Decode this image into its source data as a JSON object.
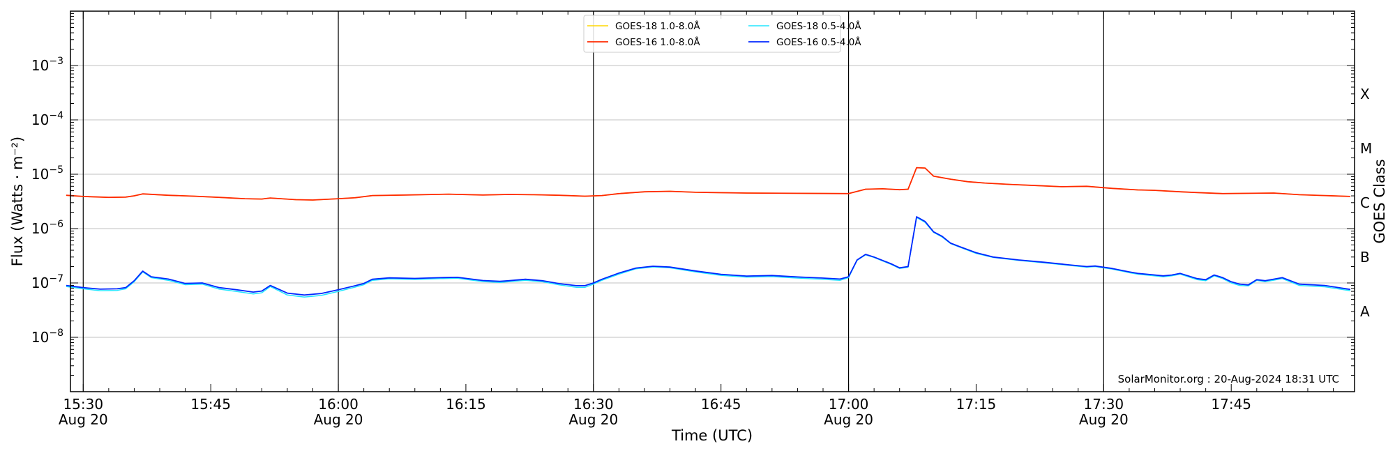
{
  "chart_data": {
    "type": "line",
    "xlabel": "Time (UTC)",
    "ylabel": "Flux (Watts · m⁻²)",
    "y2label": "GOES Class",
    "yscale": "log",
    "xlim": [
      "2024-08-20 15:28:30",
      "2024-08-20 17:59:30"
    ],
    "ylim": [
      1e-09,
      0.01
    ],
    "grid": "horizontal at each decade",
    "legend": {
      "placement": "top-center",
      "columns": 2
    },
    "credit": "SolarMonitor.org : 20-Aug-2024 18:31 UTC",
    "x_ticks": [
      {
        "time": "15:30",
        "date": "Aug 20"
      },
      {
        "time": "15:45",
        "date": ""
      },
      {
        "time": "16:00",
        "date": "Aug 20"
      },
      {
        "time": "16:15",
        "date": ""
      },
      {
        "time": "16:30",
        "date": "Aug 20"
      },
      {
        "time": "16:45",
        "date": ""
      },
      {
        "time": "17:00",
        "date": "Aug 20"
      },
      {
        "time": "17:15",
        "date": ""
      },
      {
        "time": "17:30",
        "date": "Aug 20"
      },
      {
        "time": "17:45",
        "date": ""
      }
    ],
    "major_vlines": [
      "15:30",
      "16:00",
      "16:30",
      "17:00",
      "17:30"
    ],
    "y_ticks": [
      {
        "value": 1e-08,
        "base": "10",
        "exp": "−8"
      },
      {
        "value": 1e-07,
        "base": "10",
        "exp": "−7"
      },
      {
        "value": 1e-06,
        "base": "10",
        "exp": "−6"
      },
      {
        "value": 1e-05,
        "base": "10",
        "exp": "−5"
      },
      {
        "value": 0.0001,
        "base": "10",
        "exp": "−4"
      },
      {
        "value": 0.001,
        "base": "10",
        "exp": "−3"
      }
    ],
    "goes_classes": [
      {
        "label": "A",
        "value": 3e-08
      },
      {
        "label": "B",
        "value": 3e-07
      },
      {
        "label": "C",
        "value": 3e-06
      },
      {
        "label": "M",
        "value": 3e-05
      },
      {
        "label": "X",
        "value": 0.0003
      }
    ],
    "series": [
      {
        "name": "GOES-18 1.0-8.0Å",
        "color": "#ffd700",
        "width": 1.5,
        "x": [
          "15:28",
          "15:30",
          "15:33",
          "15:35",
          "15:36",
          "15:37",
          "15:40",
          "15:43",
          "15:46",
          "15:49",
          "15:51",
          "15:52",
          "15:55",
          "15:57",
          "16:00",
          "16:02",
          "16:04",
          "16:08",
          "16:13",
          "16:17",
          "16:20",
          "16:23",
          "16:26",
          "16:29",
          "16:31",
          "16:33",
          "16:36",
          "16:39",
          "16:42",
          "16:48",
          "16:54",
          "17:00",
          "17:02",
          "17:04",
          "17:06",
          "17:07",
          "17:08",
          "17:09",
          "17:10",
          "17:12",
          "17:14",
          "17:16",
          "17:19",
          "17:22",
          "17:25",
          "17:28",
          "17:31",
          "17:34",
          "17:36",
          "17:39",
          "17:41",
          "17:44",
          "17:47",
          "17:50",
          "17:53",
          "17:56",
          "17:59"
        ],
        "y": [
          4.1e-06,
          3.9e-06,
          3.75e-06,
          3.8e-06,
          4e-06,
          4.35e-06,
          4.1e-06,
          3.95e-06,
          3.75e-06,
          3.55e-06,
          3.5e-06,
          3.65e-06,
          3.4e-06,
          3.35e-06,
          3.55e-06,
          3.7e-06,
          4.05e-06,
          4.15e-06,
          4.3e-06,
          4.15e-06,
          4.25e-06,
          4.2e-06,
          4.1e-06,
          3.95e-06,
          4.05e-06,
          4.4e-06,
          4.75e-06,
          4.85e-06,
          4.65e-06,
          4.5e-06,
          4.45e-06,
          4.4e-06,
          5.3e-06,
          5.4e-06,
          5.2e-06,
          5.3e-06,
          1.32e-05,
          1.3e-05,
          9.2e-06,
          8.1e-06,
          7.3e-06,
          6.9e-06,
          6.5e-06,
          6.2e-06,
          5.9e-06,
          6e-06,
          5.5e-06,
          5.15e-06,
          5.05e-06,
          4.75e-06,
          4.6e-06,
          4.4e-06,
          4.45e-06,
          4.5e-06,
          4.2e-06,
          4.05e-06,
          3.9e-06
        ]
      },
      {
        "name": "GOES-16 1.0-8.0Å",
        "color": "#ff2a00",
        "width": 1.8,
        "x": [
          "15:28",
          "15:30",
          "15:33",
          "15:35",
          "15:36",
          "15:37",
          "15:40",
          "15:43",
          "15:46",
          "15:49",
          "15:51",
          "15:52",
          "15:55",
          "15:57",
          "16:00",
          "16:02",
          "16:04",
          "16:08",
          "16:13",
          "16:17",
          "16:20",
          "16:23",
          "16:26",
          "16:29",
          "16:31",
          "16:33",
          "16:36",
          "16:39",
          "16:42",
          "16:48",
          "16:54",
          "17:00",
          "17:02",
          "17:04",
          "17:06",
          "17:07",
          "17:08",
          "17:09",
          "17:10",
          "17:12",
          "17:14",
          "17:16",
          "17:19",
          "17:22",
          "17:25",
          "17:28",
          "17:31",
          "17:34",
          "17:36",
          "17:39",
          "17:41",
          "17:44",
          "17:47",
          "17:50",
          "17:53",
          "17:56",
          "17:59"
        ],
        "y": [
          4.1e-06,
          3.9e-06,
          3.75e-06,
          3.8e-06,
          4e-06,
          4.35e-06,
          4.1e-06,
          3.95e-06,
          3.75e-06,
          3.55e-06,
          3.5e-06,
          3.65e-06,
          3.4e-06,
          3.35e-06,
          3.55e-06,
          3.7e-06,
          4.05e-06,
          4.15e-06,
          4.3e-06,
          4.15e-06,
          4.25e-06,
          4.2e-06,
          4.1e-06,
          3.95e-06,
          4.05e-06,
          4.4e-06,
          4.75e-06,
          4.85e-06,
          4.65e-06,
          4.5e-06,
          4.45e-06,
          4.4e-06,
          5.3e-06,
          5.4e-06,
          5.2e-06,
          5.3e-06,
          1.32e-05,
          1.3e-05,
          9.2e-06,
          8.1e-06,
          7.3e-06,
          6.9e-06,
          6.5e-06,
          6.2e-06,
          5.9e-06,
          6e-06,
          5.5e-06,
          5.15e-06,
          5.05e-06,
          4.75e-06,
          4.6e-06,
          4.4e-06,
          4.45e-06,
          4.5e-06,
          4.2e-06,
          4.05e-06,
          3.9e-06
        ]
      },
      {
        "name": "GOES-18 0.5-4.0Å",
        "color": "#22e5ff",
        "width": 1.5,
        "x": [
          "15:28",
          "15:30",
          "15:32",
          "15:34",
          "15:35",
          "15:36",
          "15:37",
          "15:38",
          "15:40",
          "15:42",
          "15:44",
          "15:46",
          "15:48",
          "15:50",
          "15:51",
          "15:52",
          "15:54",
          "15:56",
          "15:58",
          "16:00",
          "16:02",
          "16:03",
          "16:04",
          "16:06",
          "16:09",
          "16:12",
          "16:14",
          "16:17",
          "16:19",
          "16:20",
          "16:22",
          "16:24",
          "16:26",
          "16:28",
          "16:29",
          "16:30",
          "16:31",
          "16:33",
          "16:35",
          "16:37",
          "16:39",
          "16:42",
          "16:45",
          "16:48",
          "16:51",
          "16:54",
          "16:57",
          "16:59",
          "17:00",
          "17:01",
          "17:02",
          "17:03",
          "17:05",
          "17:06",
          "17:07",
          "17:08",
          "17:09",
          "17:10",
          "17:11",
          "17:12",
          "17:13",
          "17:15",
          "17:17",
          "17:20",
          "17:23",
          "17:26",
          "17:28",
          "17:29",
          "17:31",
          "17:33",
          "17:34",
          "17:35",
          "17:37",
          "17:38",
          "17:39",
          "17:41",
          "17:42",
          "17:43",
          "17:44",
          "17:45",
          "17:46",
          "17:47",
          "17:48",
          "17:49",
          "17:51",
          "17:53",
          "17:56",
          "17:59"
        ],
        "y": [
          8.6e-08,
          7.8e-08,
          7.2e-08,
          7.3e-08,
          7.8e-08,
          1.05e-07,
          1.6e-07,
          1.25e-07,
          1.12e-07,
          9.3e-08,
          9.5e-08,
          7.7e-08,
          7e-08,
          6.3e-08,
          6.6e-08,
          8.6e-08,
          6e-08,
          5.5e-08,
          5.9e-08,
          7e-08,
          8.4e-08,
          9.3e-08,
          1.12e-07,
          1.19e-07,
          1.16e-07,
          1.2e-07,
          1.22e-07,
          1.06e-07,
          1.02e-07,
          1.05e-07,
          1.12e-07,
          1.05e-07,
          9.2e-08,
          8.3e-08,
          8.3e-08,
          9.5e-08,
          1.12e-07,
          1.45e-07,
          1.82e-07,
          1.97e-07,
          1.9e-07,
          1.6e-07,
          1.38e-07,
          1.28e-07,
          1.31e-07,
          1.23e-07,
          1.17e-07,
          1.12e-07,
          1.25e-07,
          2.6e-07,
          3.3e-07,
          2.95e-07,
          2.2e-07,
          1.85e-07,
          1.95e-07,
          1.6e-06,
          1.3e-06,
          8.5e-07,
          7e-07,
          5.3e-07,
          4.6e-07,
          3.5e-07,
          2.95e-07,
          2.6e-07,
          2.35e-07,
          2.1e-07,
          1.95e-07,
          2e-07,
          1.8e-07,
          1.55e-07,
          1.45e-07,
          1.4e-07,
          1.3e-07,
          1.35e-07,
          1.45e-07,
          1.15e-07,
          1.1e-07,
          1.35e-07,
          1.2e-07,
          1e-07,
          9e-08,
          8.8e-08,
          1.12e-07,
          1.05e-07,
          1.2e-07,
          9e-08,
          8.5e-08,
          7.2e-08
        ]
      },
      {
        "name": "GOES-16 0.5-4.0Å",
        "color": "#0026ff",
        "width": 1.8,
        "x": [
          "15:28",
          "15:30",
          "15:32",
          "15:34",
          "15:35",
          "15:36",
          "15:37",
          "15:38",
          "15:40",
          "15:42",
          "15:44",
          "15:46",
          "15:48",
          "15:50",
          "15:51",
          "15:52",
          "15:54",
          "15:56",
          "15:58",
          "16:00",
          "16:02",
          "16:03",
          "16:04",
          "16:06",
          "16:09",
          "16:12",
          "16:14",
          "16:17",
          "16:19",
          "16:20",
          "16:22",
          "16:24",
          "16:26",
          "16:28",
          "16:29",
          "16:30",
          "16:31",
          "16:33",
          "16:35",
          "16:37",
          "16:39",
          "16:42",
          "16:45",
          "16:48",
          "16:51",
          "16:54",
          "16:57",
          "16:59",
          "17:00",
          "17:01",
          "17:02",
          "17:03",
          "17:05",
          "17:06",
          "17:07",
          "17:08",
          "17:09",
          "17:10",
          "17:11",
          "17:12",
          "17:13",
          "17:15",
          "17:17",
          "17:20",
          "17:23",
          "17:26",
          "17:28",
          "17:29",
          "17:31",
          "17:33",
          "17:34",
          "17:35",
          "17:37",
          "17:38",
          "17:39",
          "17:41",
          "17:42",
          "17:43",
          "17:44",
          "17:45",
          "17:46",
          "17:47",
          "17:48",
          "17:49",
          "17:51",
          "17:53",
          "17:56",
          "17:59"
        ],
        "y": [
          9e-08,
          8.2e-08,
          7.7e-08,
          7.8e-08,
          8.2e-08,
          1.1e-07,
          1.65e-07,
          1.3e-07,
          1.18e-07,
          9.8e-08,
          1e-07,
          8.2e-08,
          7.5e-08,
          6.8e-08,
          7.1e-08,
          9e-08,
          6.5e-08,
          6e-08,
          6.4e-08,
          7.5e-08,
          8.9e-08,
          9.8e-08,
          1.17e-07,
          1.24e-07,
          1.21e-07,
          1.25e-07,
          1.27e-07,
          1.11e-07,
          1.07e-07,
          1.1e-07,
          1.17e-07,
          1.1e-07,
          9.7e-08,
          8.9e-08,
          8.9e-08,
          1e-07,
          1.17e-07,
          1.52e-07,
          1.88e-07,
          2.03e-07,
          1.96e-07,
          1.66e-07,
          1.44e-07,
          1.34e-07,
          1.37e-07,
          1.29e-07,
          1.23e-07,
          1.18e-07,
          1.3e-07,
          2.65e-07,
          3.35e-07,
          3e-07,
          2.25e-07,
          1.9e-07,
          2e-07,
          1.65e-06,
          1.35e-06,
          8.7e-07,
          7.2e-07,
          5.4e-07,
          4.7e-07,
          3.6e-07,
          3e-07,
          2.65e-07,
          2.4e-07,
          2.15e-07,
          2e-07,
          2.05e-07,
          1.85e-07,
          1.6e-07,
          1.5e-07,
          1.45e-07,
          1.35e-07,
          1.4e-07,
          1.5e-07,
          1.2e-07,
          1.15e-07,
          1.4e-07,
          1.25e-07,
          1.05e-07,
          9.5e-08,
          9.2e-08,
          1.15e-07,
          1.1e-07,
          1.25e-07,
          9.5e-08,
          9e-08,
          7.6e-08
        ]
      }
    ]
  }
}
